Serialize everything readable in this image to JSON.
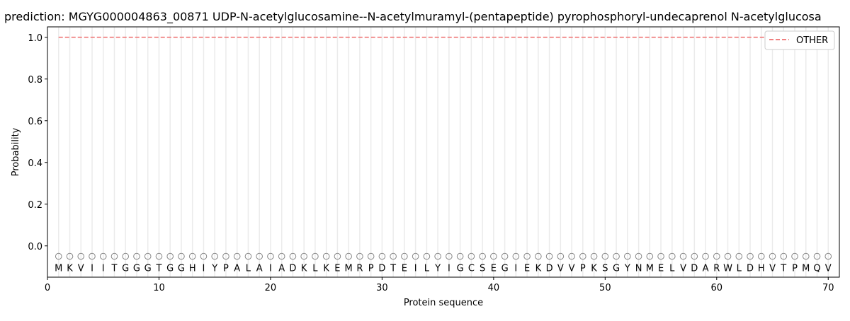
{
  "chart_data": {
    "type": "line",
    "title": "prediction: MGYG000004863_00871 UDP-N-acetylglucosamine--N-acetylmuramyl-(pentapeptide) pyrophosphoryl-undecaprenol N-acetylglucosa",
    "xlabel": "Protein sequence",
    "ylabel": "Probability",
    "xlim": [
      0,
      71
    ],
    "ylim": [
      -0.15,
      1.05
    ],
    "xticks": [
      0,
      10,
      20,
      30,
      40,
      50,
      60,
      70
    ],
    "yticks": [
      0.0,
      0.2,
      0.4,
      0.6,
      0.8,
      1.0
    ],
    "ytick_labels": [
      "0.0",
      "0.2",
      "0.4",
      "0.6",
      "0.8",
      "1.0"
    ],
    "grid": "vertical lines at each residue",
    "legend_placement": "top-right",
    "sequence": "MKVIITGGGTGGHIYPALAIADKLKEMRPDTEILYIGCSEGIEKDVVPKSGYNMELVDARWLDHVTPMQV",
    "marker_y": -0.05,
    "series": [
      {
        "name": "OTHER",
        "color": "#f08080",
        "style": "dashed",
        "x_range": [
          1,
          70
        ],
        "value": 1.0
      }
    ]
  }
}
